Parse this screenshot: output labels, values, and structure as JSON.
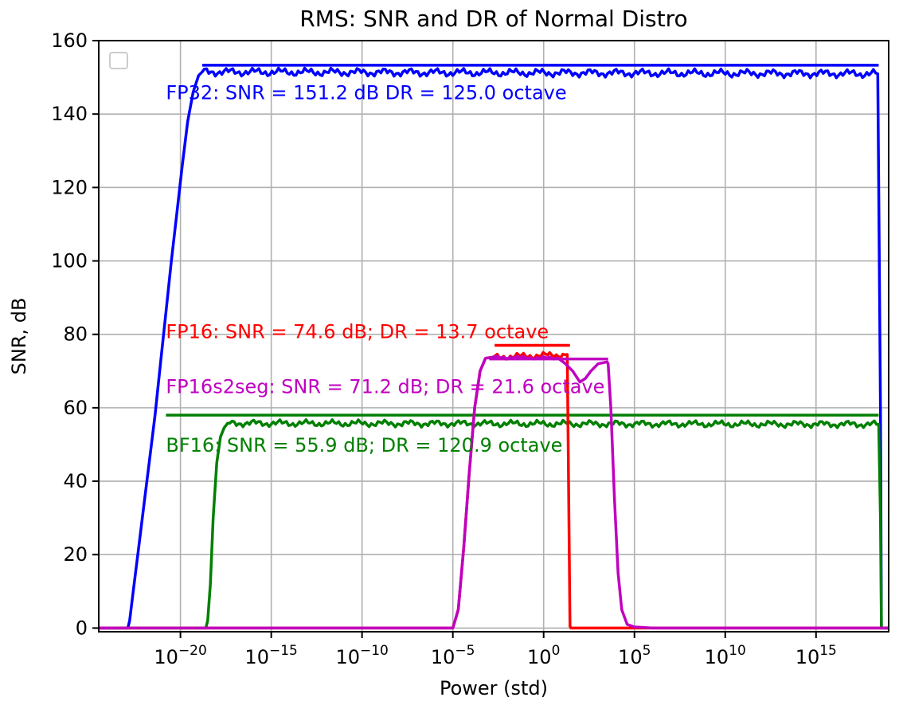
{
  "chart_data": {
    "type": "line",
    "title": "RMS: SNR and DR of Normal Distro",
    "xlabel": "Power (std)",
    "ylabel": "SNR, dB",
    "xscale": "log",
    "xlim_exp": [
      -24.5,
      19
    ],
    "ylim": [
      -1,
      160
    ],
    "grid": true,
    "legend": {
      "placement": "top-left",
      "entries": []
    },
    "y_ticks": [
      "0",
      "20",
      "40",
      "60",
      "80",
      "100",
      "120",
      "140",
      "160"
    ],
    "x_ticks": [
      {
        "base": "10",
        "exp": "−20",
        "value_exp": -20
      },
      {
        "base": "10",
        "exp": "−15",
        "value_exp": -15
      },
      {
        "base": "10",
        "exp": "−10",
        "value_exp": -10
      },
      {
        "base": "10",
        "exp": "−5",
        "value_exp": -5
      },
      {
        "base": "10",
        "exp": "0",
        "value_exp": 0
      },
      {
        "base": "10",
        "exp": "5",
        "value_exp": 5
      },
      {
        "base": "10",
        "exp": "10",
        "value_exp": 10
      },
      {
        "base": "10",
        "exp": "15",
        "value_exp": 15
      }
    ],
    "series": [
      {
        "key": "fp32",
        "color": "#0000ff",
        "annotation": "FP32: SNR = 151.2 dB  DR = 125.0 octave",
        "label_pos_log10x": -20.8,
        "label_pos_y": 144,
        "curve": [
          [
            -24.5,
            0
          ],
          [
            -22.9,
            0
          ],
          [
            -22.8,
            2
          ],
          [
            -22.6,
            10
          ],
          [
            -22.3,
            22
          ],
          [
            -22.0,
            34
          ],
          [
            -21.7,
            46
          ],
          [
            -21.4,
            58
          ],
          [
            -21.1,
            72
          ],
          [
            -20.8,
            86
          ],
          [
            -20.5,
            100
          ],
          [
            -20.2,
            113
          ],
          [
            -19.9,
            126
          ],
          [
            -19.6,
            138
          ],
          [
            -19.3,
            146
          ],
          [
            -19.0,
            150.5
          ],
          [
            -18.8,
            151.5
          ],
          [
            18.4,
            151.0
          ],
          [
            18.45,
            120
          ],
          [
            18.55,
            60
          ],
          [
            18.6,
            0
          ],
          [
            19,
            0
          ]
        ],
        "curve_noise": 1.2,
        "snr_line": {
          "from_log10x": -18.8,
          "to_log10x": 18.45,
          "y": 153.3
        }
      },
      {
        "key": "bf16",
        "color": "#008000",
        "annotation": "BF16: SNR = 55.9 dB; DR = 120.9 octave",
        "label_pos_log10x": -20.8,
        "label_pos_y": 48,
        "curve": [
          [
            -24.5,
            0
          ],
          [
            -18.6,
            0
          ],
          [
            -18.5,
            2
          ],
          [
            -18.35,
            12
          ],
          [
            -18.2,
            30
          ],
          [
            -18.0,
            45
          ],
          [
            -17.8,
            52
          ],
          [
            -17.6,
            54.5
          ],
          [
            -17.4,
            55.8
          ],
          [
            18.45,
            55.5
          ],
          [
            18.55,
            30
          ],
          [
            18.6,
            0
          ],
          [
            19,
            0
          ]
        ],
        "curve_noise": 1.0,
        "snr_line": {
          "from_log10x": -20.8,
          "to_log10x": 18.45,
          "y": 58
        }
      },
      {
        "key": "fp16",
        "color": "#ff0000",
        "annotation": "FP16: SNR = 74.6 dB; DR = 13.7 octave",
        "label_pos_log10x": -20.8,
        "label_pos_y": 79,
        "curve": [
          [
            -24.5,
            0
          ],
          [
            -5.0,
            0
          ],
          [
            -4.7,
            5
          ],
          [
            -4.4,
            22
          ],
          [
            -4.1,
            42
          ],
          [
            -3.8,
            60
          ],
          [
            -3.5,
            70
          ],
          [
            -3.2,
            73.5
          ],
          [
            -2.8,
            73.8
          ],
          [
            1.3,
            74.5
          ],
          [
            1.45,
            0.5
          ],
          [
            1.5,
            0
          ],
          [
            19,
            0
          ]
        ],
        "curve_noise": 0.9,
        "snr_line": {
          "from_log10x": -2.7,
          "to_log10x": 1.45,
          "y": 77
        }
      },
      {
        "key": "fp16s2seg",
        "color": "#c000c0",
        "annotation": "FP16s2seg: SNR = 71.2 dB; DR = 21.6 octave",
        "label_pos_log10x": -20.8,
        "label_pos_y": 64,
        "curve": [
          [
            -24.5,
            0
          ],
          [
            -5.0,
            0
          ],
          [
            -4.7,
            5
          ],
          [
            -4.4,
            22
          ],
          [
            -4.1,
            42
          ],
          [
            -3.8,
            60
          ],
          [
            -3.5,
            70
          ],
          [
            -3.2,
            73.5
          ],
          [
            -2.8,
            73.8
          ],
          [
            0.8,
            73.5
          ],
          [
            1.2,
            72
          ],
          [
            1.6,
            70
          ],
          [
            2.0,
            67
          ],
          [
            2.3,
            68
          ],
          [
            2.6,
            70
          ],
          [
            3.0,
            72
          ],
          [
            3.5,
            72.5
          ],
          [
            3.55,
            72
          ],
          [
            3.7,
            60
          ],
          [
            3.9,
            35
          ],
          [
            4.1,
            15
          ],
          [
            4.3,
            5
          ],
          [
            4.6,
            1
          ],
          [
            5.0,
            0.3
          ],
          [
            6.0,
            0
          ],
          [
            19,
            0
          ]
        ],
        "curve_noise": 0.4,
        "snr_line": {
          "from_log10x": -3.0,
          "to_log10x": 3.55,
          "y": 73.3
        }
      }
    ]
  }
}
